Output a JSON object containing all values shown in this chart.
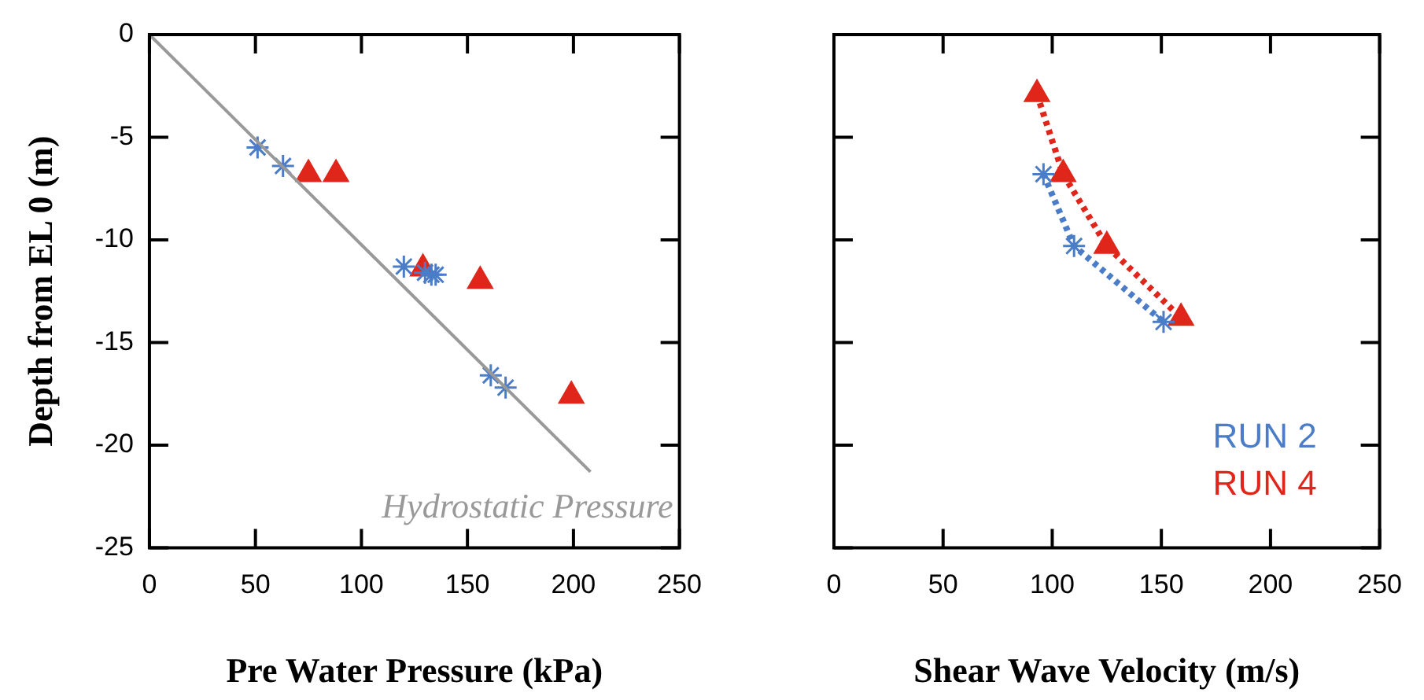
{
  "chart_data": [
    {
      "type": "scatter",
      "xlabel": "Pre Water Pressure (kPa)",
      "ylabel": "Depth from EL 0 (m)",
      "xlim": [
        0,
        250
      ],
      "xticks": [
        0,
        50,
        100,
        150,
        200,
        250
      ],
      "ylim": [
        -25,
        0
      ],
      "yticks": [
        -25,
        -20,
        -15,
        -10,
        -5,
        0
      ],
      "grid": false,
      "legend": false,
      "annotations": [
        "Hydrostatic Pressure"
      ],
      "series": [
        {
          "type": "line",
          "color": "#999999",
          "marker": "none",
          "line_style": "solid",
          "x": [
            0,
            208
          ],
          "values": [
            0,
            -21.3
          ]
        },
        {
          "color": "#4a7cc7",
          "marker": "cross",
          "x": [
            51,
            63,
            120,
            130,
            133,
            135,
            161,
            168
          ],
          "values": [
            -5.5,
            -6.4,
            -11.3,
            -11.6,
            -11.7,
            -11.7,
            -16.6,
            -17.2
          ]
        },
        {
          "color": "#e0261b",
          "marker": "triangle",
          "x": [
            75,
            88,
            129,
            156,
            199
          ],
          "values": [
            -6.8,
            -6.8,
            -11.4,
            -12.0,
            -17.6
          ]
        }
      ]
    },
    {
      "type": "line",
      "xlabel": "Shear Wave Velocity (m/s)",
      "xlim": [
        0,
        250
      ],
      "xticks": [
        0,
        50,
        100,
        150,
        200,
        250
      ],
      "ylim": [
        -25,
        0
      ],
      "yticks": [
        -25,
        -20,
        -15,
        -10,
        -5,
        0
      ],
      "tick_labels": "x",
      "grid": false,
      "legend": "bottom right",
      "line_style": "dotted",
      "series": [
        {
          "name": "RUN 2",
          "color": "#4a7cc7",
          "marker": "cross",
          "x": [
            96,
            110,
            151
          ],
          "values": [
            -6.8,
            -10.3,
            -14.0
          ]
        },
        {
          "name": "RUN 4",
          "color": "#e0261b",
          "marker": "triangle",
          "x": [
            93,
            105,
            125,
            159
          ],
          "values": [
            -2.9,
            -6.8,
            -10.3,
            -13.8
          ]
        }
      ]
    }
  ]
}
